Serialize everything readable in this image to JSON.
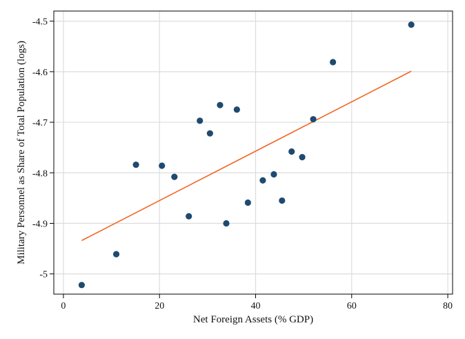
{
  "chart_data": {
    "type": "scatter",
    "xlabel": "Net Foreign Assets (% GDP)",
    "ylabel": "Military Personnel as Share of Total Population (logs)",
    "xlim": [
      -2,
      81
    ],
    "ylim": [
      -5.04,
      -4.48
    ],
    "xticks": [
      0,
      20,
      40,
      60,
      80
    ],
    "xtick_labels": [
      "0",
      "20",
      "40",
      "60",
      "80"
    ],
    "yticks": [
      -5,
      -4.9,
      -4.8,
      -4.7,
      -4.6,
      -4.5
    ],
    "ytick_labels": [
      "-5",
      "-4.9",
      "-4.8",
      "-4.7",
      "-4.6",
      "-4.5"
    ],
    "grid": true,
    "legend": "none",
    "series": [
      {
        "kind": "points",
        "color": "#1f4a70",
        "x": [
          3.8,
          11.0,
          15.1,
          20.5,
          23.1,
          26.1,
          28.4,
          30.5,
          32.6,
          33.9,
          36.1,
          38.4,
          41.5,
          43.8,
          45.5,
          47.5,
          49.7,
          52.0,
          56.1,
          72.4
        ],
        "y": [
          -5.022,
          -4.961,
          -4.784,
          -4.786,
          -4.808,
          -4.886,
          -4.697,
          -4.722,
          -4.666,
          -4.9,
          -4.675,
          -4.859,
          -4.815,
          -4.803,
          -4.855,
          -4.758,
          -4.769,
          -4.694,
          -4.581,
          -4.507
        ]
      },
      {
        "kind": "fit-line",
        "color": "#f26522",
        "x": [
          3.8,
          72.4
        ],
        "y": [
          -4.934,
          -4.599
        ]
      }
    ]
  }
}
